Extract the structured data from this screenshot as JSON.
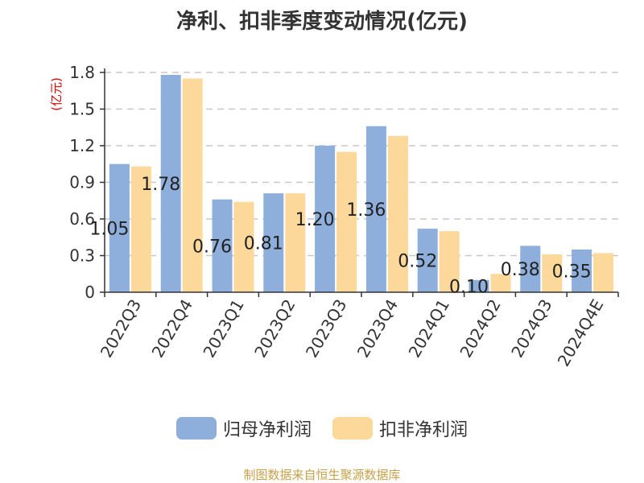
{
  "chart_data": {
    "type": "bar",
    "title": "净利、扣非季度变动情况(亿元)",
    "ylabel": "(亿元)",
    "xlabel": "",
    "ylim": [
      0,
      1.8
    ],
    "yticks": [
      "0",
      "0.3",
      "0.6",
      "0.9",
      "1.2",
      "1.5",
      "1.8"
    ],
    "grid": true,
    "legend_position": "bottom",
    "categories": [
      "2022Q3",
      "2022Q4",
      "2023Q1",
      "2023Q2",
      "2023Q3",
      "2023Q4",
      "2024Q1",
      "2024Q2",
      "2024Q3",
      "2024Q4E"
    ],
    "series": [
      {
        "name": "归母净利润",
        "color": "#8eaedb",
        "values": [
          1.05,
          1.78,
          0.76,
          0.81,
          1.2,
          1.36,
          0.52,
          0.1,
          0.38,
          0.35
        ],
        "labels": [
          "1.05",
          "1.78",
          "0.76",
          "0.81",
          "1.20",
          "1.36",
          "0.52",
          "0.10",
          "0.38",
          "0.35"
        ]
      },
      {
        "name": "扣非净利润",
        "color": "#fdd89b",
        "values": [
          1.03,
          1.75,
          0.74,
          0.81,
          1.15,
          1.28,
          0.5,
          0.15,
          0.31,
          0.32
        ]
      }
    ]
  },
  "source_text": "制图数据来自恒生聚源数据库"
}
